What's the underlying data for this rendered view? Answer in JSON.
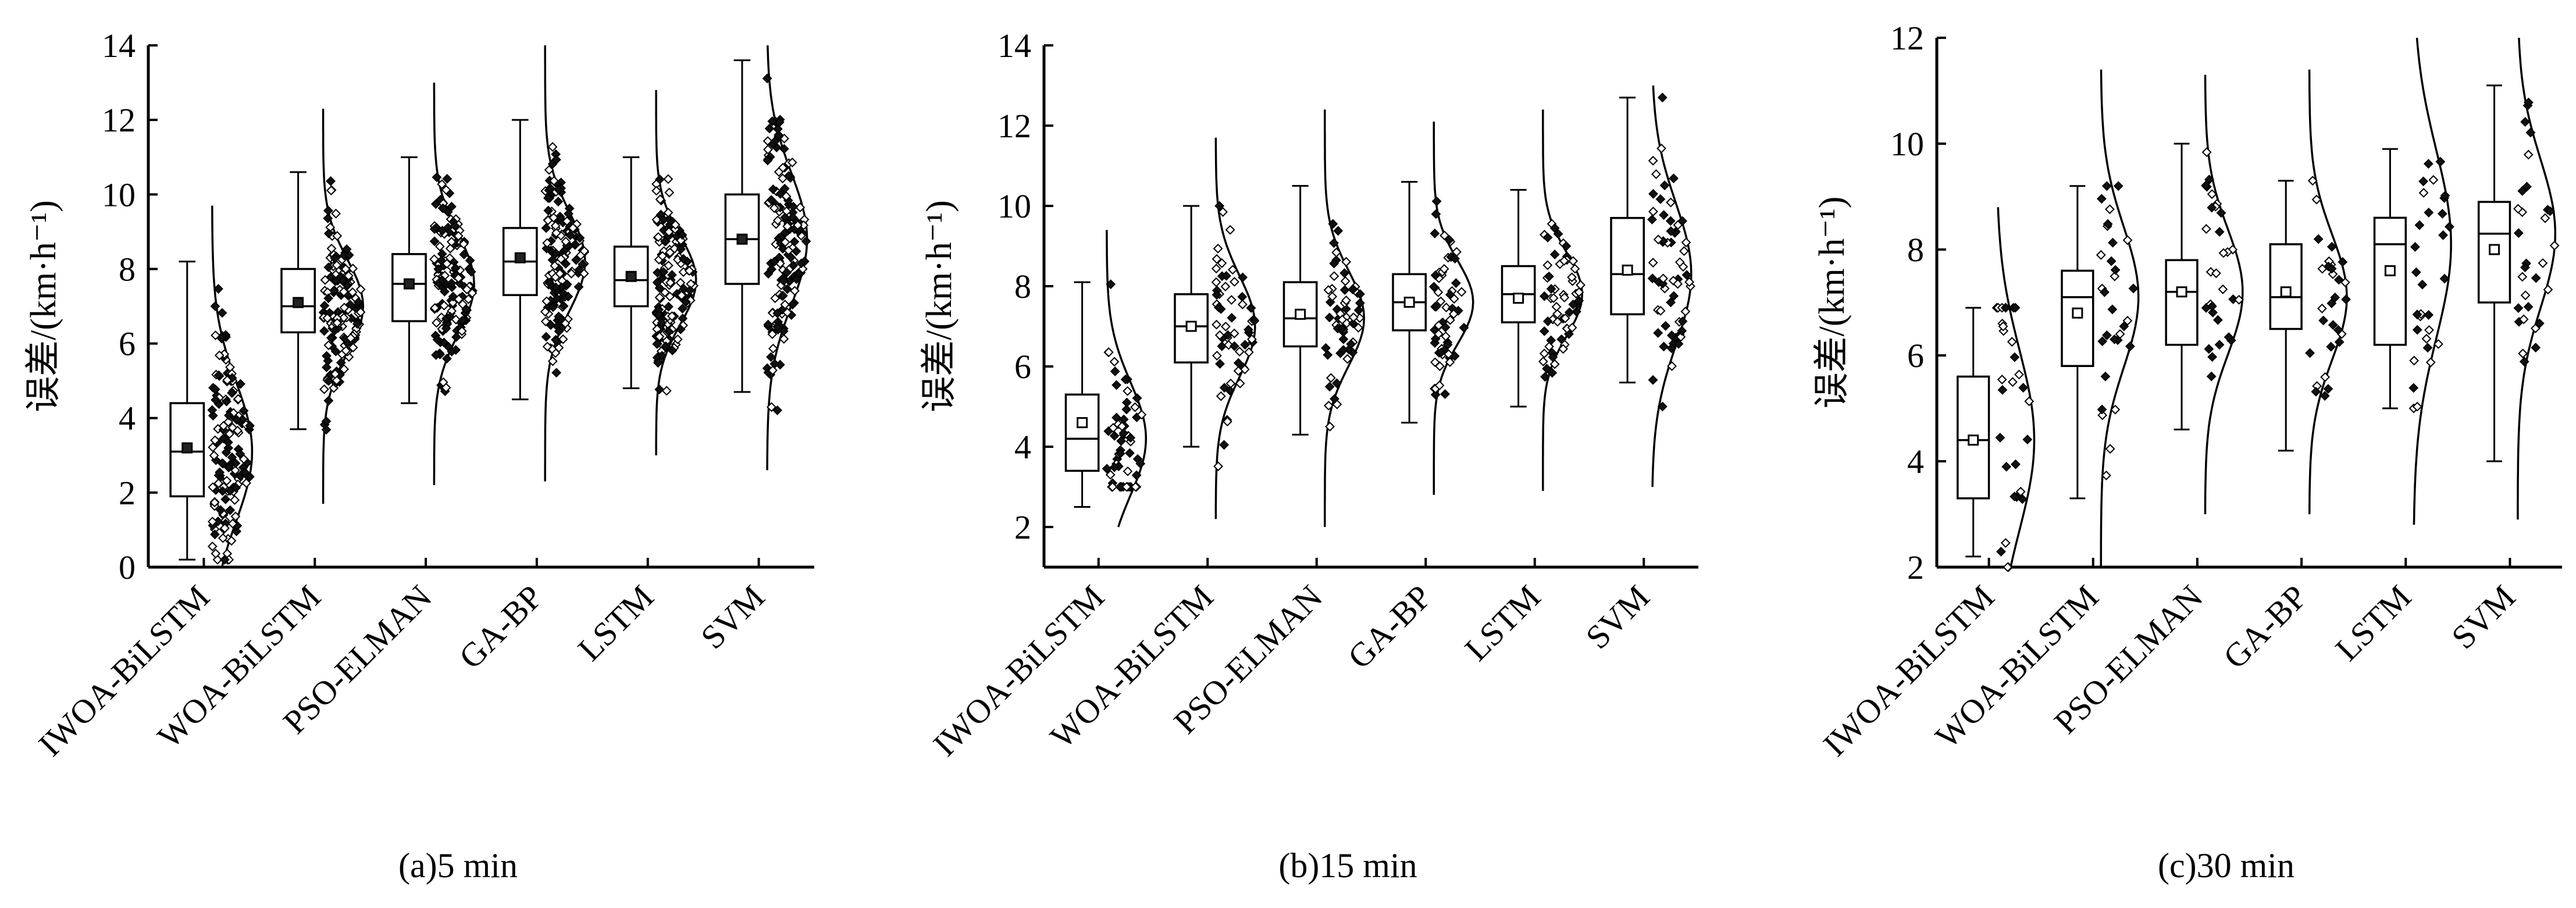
{
  "chart_data": [
    {
      "type": "box",
      "caption": "(a)5 min",
      "ylabel": "误差/(km·h⁻¹)",
      "ylim": [
        0,
        14
      ],
      "yticks": [
        0,
        2,
        4,
        6,
        8,
        10,
        12,
        14
      ],
      "categories": [
        "IWOA-BiLSTM",
        "WOA-BiLSTM",
        "PSO-ELMAN",
        "GA-BP",
        "LSTM",
        "SVM"
      ],
      "boxes": [
        {
          "whisker_low": 0.2,
          "q1": 1.9,
          "median": 3.1,
          "q3": 4.4,
          "whisker_high": 8.2,
          "mean": 3.2
        },
        {
          "whisker_low": 3.7,
          "q1": 6.3,
          "median": 7.0,
          "q3": 8.0,
          "whisker_high": 10.6,
          "mean": 7.1
        },
        {
          "whisker_low": 4.4,
          "q1": 6.6,
          "median": 7.6,
          "q3": 8.4,
          "whisker_high": 11.0,
          "mean": 7.6
        },
        {
          "whisker_low": 4.5,
          "q1": 7.3,
          "median": 8.2,
          "q3": 9.1,
          "whisker_high": 12.0,
          "mean": 8.3
        },
        {
          "whisker_low": 4.8,
          "q1": 7.0,
          "median": 7.7,
          "q3": 8.6,
          "whisker_high": 11.0,
          "mean": 7.8
        },
        {
          "whisker_low": 4.7,
          "q1": 7.6,
          "median": 8.8,
          "q3": 10.0,
          "whisker_high": 13.6,
          "mean": 8.8
        }
      ],
      "points": [
        {
          "min": 0.2,
          "max": 8.2,
          "n": 150
        },
        {
          "min": 3.2,
          "max": 11.1,
          "n": 150
        },
        {
          "min": 2.5,
          "max": 12.1,
          "n": 150
        },
        {
          "min": 2.8,
          "max": 13.1,
          "n": 150
        },
        {
          "min": 3.0,
          "max": 11.9,
          "n": 150
        },
        {
          "min": 4.0,
          "max": 13.6,
          "n": 150
        }
      ],
      "curves": [
        {
          "low": 0.0,
          "high": 9.7
        },
        {
          "low": 1.7,
          "high": 12.3
        },
        {
          "low": 2.2,
          "high": 13.0
        },
        {
          "low": 2.3,
          "high": 14.0
        },
        {
          "low": 3.0,
          "high": 12.8
        },
        {
          "low": 2.6,
          "high": 14.0
        }
      ]
    },
    {
      "type": "box",
      "caption": "(b)15 min",
      "ylabel": "误差/(km·h⁻¹)",
      "ylim": [
        1,
        14
      ],
      "yticks": [
        2,
        4,
        6,
        8,
        10,
        12,
        14
      ],
      "categories": [
        "IWOA-BiLSTM",
        "WOA-BiLSTM",
        "PSO-ELMAN",
        "GA-BP",
        "LSTM",
        "SVM"
      ],
      "boxes": [
        {
          "whisker_low": 2.5,
          "q1": 3.4,
          "median": 4.2,
          "q3": 5.3,
          "whisker_high": 8.1,
          "mean": 4.6
        },
        {
          "whisker_low": 4.0,
          "q1": 6.1,
          "median": 7.0,
          "q3": 7.8,
          "whisker_high": 10.0,
          "mean": 7.0
        },
        {
          "whisker_low": 4.3,
          "q1": 6.5,
          "median": 7.2,
          "q3": 8.1,
          "whisker_high": 10.5,
          "mean": 7.3
        },
        {
          "whisker_low": 4.6,
          "q1": 6.9,
          "median": 7.6,
          "q3": 8.3,
          "whisker_high": 10.6,
          "mean": 7.6
        },
        {
          "whisker_low": 5.0,
          "q1": 7.1,
          "median": 7.8,
          "q3": 8.5,
          "whisker_high": 10.4,
          "mean": 7.7
        },
        {
          "whisker_low": 5.6,
          "q1": 7.3,
          "median": 8.3,
          "q3": 9.7,
          "whisker_high": 12.7,
          "mean": 8.4
        }
      ],
      "points": [
        {
          "min": 3.0,
          "max": 8.1,
          "n": 60
        },
        {
          "min": 3.4,
          "max": 10.0,
          "n": 60
        },
        {
          "min": 3.2,
          "max": 11.1,
          "n": 60
        },
        {
          "min": 4.9,
          "max": 11.4,
          "n": 60
        },
        {
          "min": 3.1,
          "max": 11.3,
          "n": 60
        },
        {
          "min": 5.0,
          "max": 12.7,
          "n": 60
        }
      ],
      "curves": [
        {
          "low": 2.0,
          "high": 9.4
        },
        {
          "low": 2.2,
          "high": 11.7
        },
        {
          "low": 2.0,
          "high": 12.4
        },
        {
          "low": 2.8,
          "high": 12.1
        },
        {
          "low": 2.9,
          "high": 12.4
        },
        {
          "low": 3.0,
          "high": 13.0
        }
      ]
    },
    {
      "type": "box",
      "caption": "(c)30 min",
      "ylabel": "误差/(km·h⁻¹)",
      "ylim": [
        2,
        12
      ],
      "yticks": [
        2,
        4,
        6,
        8,
        10,
        12
      ],
      "categories": [
        "IWOA-BiLSTM",
        "WOA-BiLSTM",
        "PSO-ELMAN",
        "GA-BP",
        "LSTM",
        "SVM"
      ],
      "boxes": [
        {
          "whisker_low": 2.2,
          "q1": 3.3,
          "median": 4.4,
          "q3": 5.6,
          "whisker_high": 6.9,
          "mean": 4.4
        },
        {
          "whisker_low": 3.3,
          "q1": 5.8,
          "median": 7.1,
          "q3": 7.6,
          "whisker_high": 9.2,
          "mean": 6.8
        },
        {
          "whisker_low": 4.6,
          "q1": 6.2,
          "median": 7.2,
          "q3": 7.8,
          "whisker_high": 10.0,
          "mean": 7.2
        },
        {
          "whisker_low": 4.2,
          "q1": 6.5,
          "median": 7.1,
          "q3": 8.1,
          "whisker_high": 9.3,
          "mean": 7.2
        },
        {
          "whisker_low": 5.0,
          "q1": 6.2,
          "median": 8.1,
          "q3": 8.6,
          "whisker_high": 9.9,
          "mean": 7.6
        },
        {
          "whisker_low": 4.0,
          "q1": 7.0,
          "median": 8.3,
          "q3": 8.9,
          "whisker_high": 11.1,
          "mean": 8.0
        }
      ],
      "points": [
        {
          "min": 2.0,
          "max": 6.9,
          "n": 30
        },
        {
          "min": 3.3,
          "max": 9.2,
          "n": 30
        },
        {
          "min": 4.6,
          "max": 10.0,
          "n": 30
        },
        {
          "min": 4.2,
          "max": 9.3,
          "n": 30
        },
        {
          "min": 5.0,
          "max": 9.9,
          "n": 30
        },
        {
          "min": 4.0,
          "max": 11.1,
          "n": 30
        }
      ],
      "curves": [
        {
          "low": 2.0,
          "high": 8.8
        },
        {
          "low": 2.0,
          "high": 11.4
        },
        {
          "low": 3.0,
          "high": 11.3
        },
        {
          "low": 3.0,
          "high": 11.4
        },
        {
          "low": 2.8,
          "high": 12.0
        },
        {
          "low": 2.9,
          "high": 12.0
        }
      ]
    }
  ]
}
